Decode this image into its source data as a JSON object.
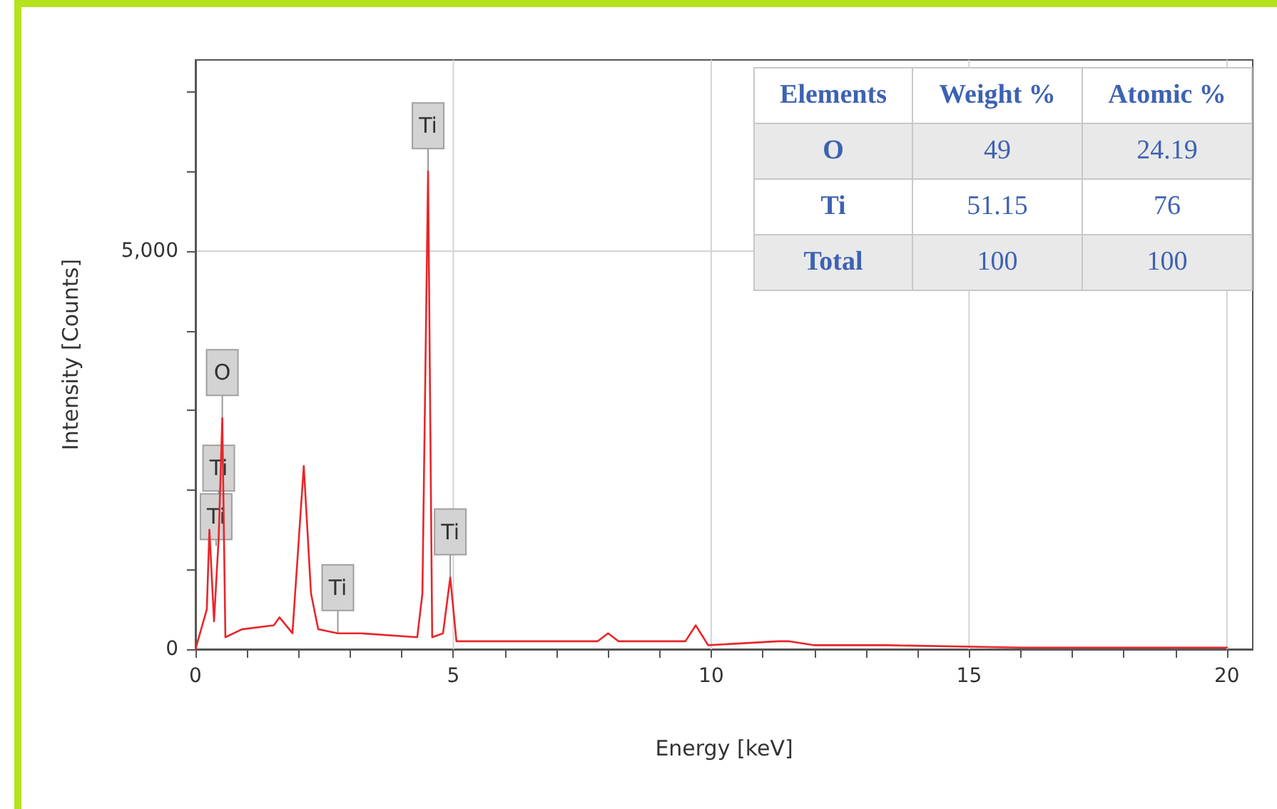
{
  "chart_data": [
    {
      "type": "line",
      "xlabel": "Energy [keV]",
      "ylabel": "Intensity [Counts]",
      "color": "#e8262b",
      "grid": true,
      "marker": "none",
      "line_style": "solid",
      "xlim": [
        0,
        20.5
      ],
      "ylim": [
        0,
        7400
      ],
      "xticks": [
        0,
        {
          "value": 1,
          "label": null
        },
        {
          "value": 2,
          "label": null
        },
        {
          "value": 3,
          "label": null
        },
        {
          "value": 4,
          "label": null
        },
        5,
        {
          "value": 6,
          "label": null
        },
        {
          "value": 7,
          "label": null
        },
        {
          "value": 8,
          "label": null
        },
        {
          "value": 9,
          "label": null
        },
        10,
        {
          "value": 11,
          "label": null
        },
        {
          "value": 12,
          "label": null
        },
        {
          "value": 13,
          "label": null
        },
        {
          "value": 14,
          "label": null
        },
        15,
        {
          "value": 16,
          "label": null
        },
        {
          "value": 17,
          "label": null
        },
        {
          "value": 18,
          "label": null
        },
        {
          "value": 19,
          "label": null
        },
        20
      ],
      "yticks": [
        0,
        {
          "value": 1000,
          "label": null
        },
        {
          "value": 2000,
          "label": null
        },
        {
          "value": 3000,
          "label": null
        },
        {
          "value": 4000,
          "label": null
        },
        {
          "value": 5000,
          "label": "5,000"
        },
        {
          "value": 6000,
          "label": null
        },
        {
          "value": 7000,
          "label": null
        }
      ],
      "x": [
        0,
        0.22,
        0.27,
        0.36,
        0.45,
        0.52,
        0.58,
        0.9,
        1.52,
        1.63,
        1.88,
        2.1,
        2.24,
        2.38,
        2.76,
        3.2,
        4.3,
        4.4,
        4.51,
        4.59,
        4.8,
        4.94,
        5.06,
        5.97,
        7.8,
        8.0,
        8.2,
        8.6,
        9.5,
        9.7,
        9.94,
        11.3,
        11.5,
        12.0,
        13.4,
        16,
        19.9,
        20.0
      ],
      "values": [
        0,
        500,
        1500,
        350,
        1400,
        2900,
        150,
        250,
        300,
        400,
        200,
        2300,
        700,
        250,
        200,
        200,
        150,
        700,
        6000,
        150,
        200,
        900,
        100,
        100,
        100,
        200,
        100,
        100,
        100,
        300,
        50,
        100,
        100,
        50,
        50,
        20,
        20,
        20
      ],
      "annotations": [
        {
          "text": "O",
          "x": 0.52,
          "y": 2900
        },
        {
          "text": "Ti",
          "x": 0.45,
          "y": 1700
        },
        {
          "text": "Ti",
          "x": 0.4,
          "y": 1300
        },
        {
          "text": "Ti",
          "x": 2.76,
          "y": 200
        },
        {
          "text": "Ti",
          "x": 4.51,
          "y": 6000
        },
        {
          "text": "Ti",
          "x": 4.94,
          "y": 900
        }
      ]
    },
    {
      "type": "other",
      "annotations": [
        "Elements",
        "Weight %",
        "Atomic %",
        "O",
        "49",
        "24.19",
        "Ti",
        "51.15",
        "76",
        "Total",
        "100",
        "100"
      ]
    }
  ]
}
